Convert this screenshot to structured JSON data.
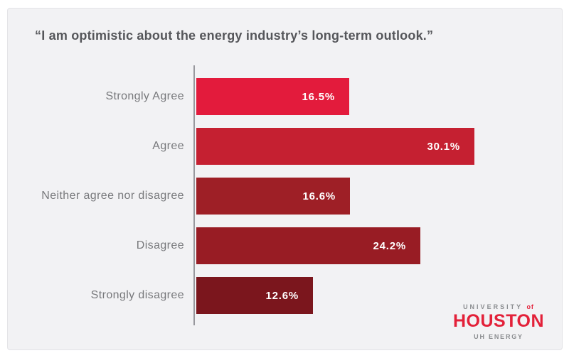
{
  "title": "“I am optimistic about the energy industry’s long-term outlook.”",
  "chart_data": {
    "type": "bar",
    "orientation": "horizontal",
    "title": "“I am optimistic about the energy industry’s long-term outlook.”",
    "categories": [
      "Strongly Agree",
      "Agree",
      "Neither agree nor disagree",
      "Disagree",
      "Strongly disagree"
    ],
    "values": [
      16.5,
      30.1,
      16.6,
      24.2,
      12.6
    ],
    "value_labels": [
      "16.5%",
      "30.1%",
      "16.6%",
      "24.2%",
      "12.6%"
    ],
    "bar_colors": [
      "#e31b3c",
      "#c52031",
      "#9e1f26",
      "#981c24",
      "#7b161d"
    ],
    "xlim": [
      0,
      35.5
    ],
    "grid": false,
    "legend": false,
    "value_label_position": "inside-right"
  },
  "logo": {
    "university": "UNIVERSITY",
    "of": "of",
    "houston": "HOUSTON",
    "sub": "UH ENERGY"
  },
  "colors": {
    "panel_bg": "#f2f2f4",
    "panel_border": "#e3e3e6",
    "title_text": "#55565a",
    "category_text": "#77787b",
    "value_text": "#ffffff",
    "axis_line": "#98989d",
    "logo_red": "#e32139",
    "logo_gray": "#8b8d90"
  }
}
